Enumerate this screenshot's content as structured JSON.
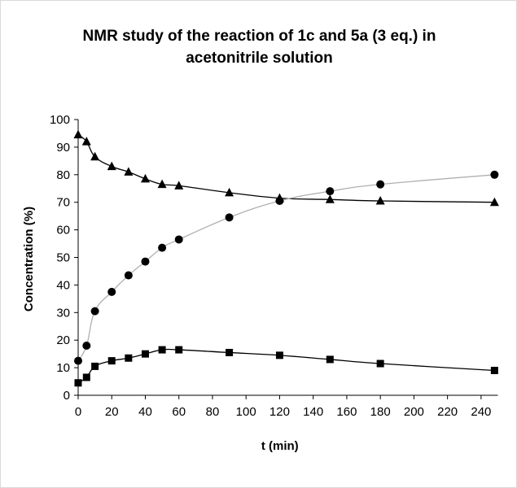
{
  "chart_data": {
    "type": "line",
    "title": "NMR study of the reaction of 1c and 5a (3 eq.) in acetonitrile solution",
    "title_lines": [
      "NMR study of the reaction of 1c and 5a (3 eq.) in",
      "acetonitrile solution"
    ],
    "xlabel": "t (min)",
    "ylabel": "Concentration (%)",
    "xlim": [
      0,
      250
    ],
    "ylim": [
      0,
      100
    ],
    "xticks": [
      0,
      20,
      40,
      60,
      80,
      100,
      120,
      140,
      160,
      180,
      200,
      220,
      240
    ],
    "yticks": [
      0,
      10,
      20,
      30,
      40,
      50,
      60,
      70,
      80,
      90,
      100
    ],
    "grid": false,
    "legend": "none",
    "series": [
      {
        "marker": "triangle",
        "line_color": "#000000",
        "points": [
          [
            0,
            94.5
          ],
          [
            5,
            92
          ],
          [
            10,
            86.5
          ],
          [
            20,
            83
          ],
          [
            30,
            81
          ],
          [
            40,
            78.5
          ],
          [
            50,
            76.5
          ],
          [
            60,
            76
          ],
          [
            90,
            73.5
          ],
          [
            120,
            71.5
          ],
          [
            150,
            71
          ],
          [
            180,
            70.5
          ],
          [
            248,
            70
          ]
        ]
      },
      {
        "marker": "circle",
        "line_color": "#b0b0b0",
        "points": [
          [
            0,
            12.5
          ],
          [
            5,
            18
          ],
          [
            10,
            30.5
          ],
          [
            20,
            37.5
          ],
          [
            30,
            43.5
          ],
          [
            40,
            48.5
          ],
          [
            50,
            53.5
          ],
          [
            60,
            56.5
          ],
          [
            90,
            64.5
          ],
          [
            120,
            70.5
          ],
          [
            150,
            74
          ],
          [
            180,
            76.5
          ],
          [
            248,
            80
          ]
        ]
      },
      {
        "marker": "square",
        "line_color": "#000000",
        "points": [
          [
            0,
            4.5
          ],
          [
            5,
            6.5
          ],
          [
            10,
            10.5
          ],
          [
            20,
            12.5
          ],
          [
            30,
            13.5
          ],
          [
            40,
            15
          ],
          [
            50,
            16.5
          ],
          [
            60,
            16.5
          ],
          [
            90,
            15.5
          ],
          [
            120,
            14.5
          ],
          [
            150,
            13
          ],
          [
            180,
            11.5
          ],
          [
            248,
            9
          ]
        ]
      }
    ]
  }
}
